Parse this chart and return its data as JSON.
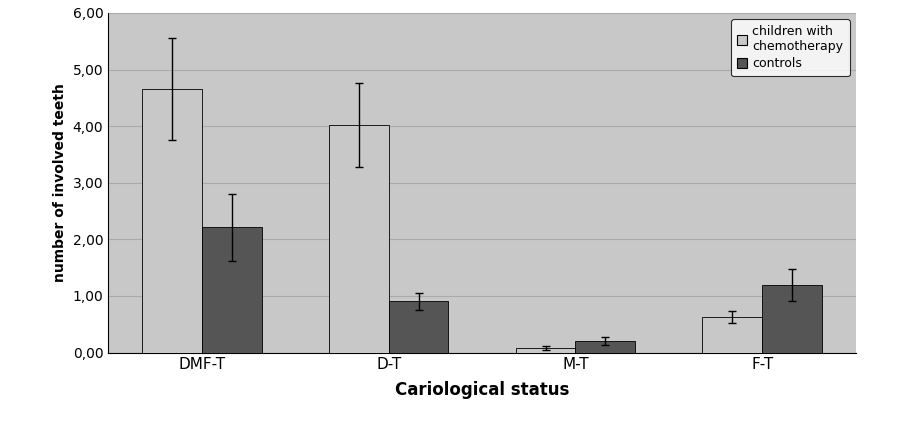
{
  "categories": [
    "DMF-T",
    "D-T",
    "M-T",
    "F-T"
  ],
  "chemo_values": [
    4.65,
    4.02,
    0.08,
    0.63
  ],
  "control_values": [
    2.21,
    0.91,
    0.2,
    1.19
  ],
  "chemo_errors": [
    0.9,
    0.75,
    0.04,
    0.1
  ],
  "control_errors": [
    0.6,
    0.15,
    0.07,
    0.28
  ],
  "chemo_color": "#c8c8c8",
  "control_color": "#555555",
  "ylabel": "number of involved teeth",
  "xlabel": "Cariological status",
  "ylim": [
    0,
    6.0
  ],
  "yticks": [
    0.0,
    1.0,
    2.0,
    3.0,
    4.0,
    5.0,
    6.0
  ],
  "ytick_labels": [
    "0,00",
    "1,00",
    "2,00",
    "3,00",
    "4,00",
    "5,00",
    "6,00"
  ],
  "legend_labels": [
    "children with\nchemotherapy",
    "controls"
  ],
  "plot_bg_color": "#c8c8c8",
  "fig_bg_color": "#ffffff",
  "grid_color": "#aaaaaa",
  "bar_width": 0.32
}
